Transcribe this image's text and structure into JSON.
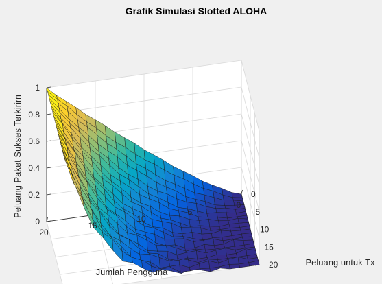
{
  "chart_data": {
    "type": "surface",
    "title": "Grafik Simulasi Slotted ALOHA",
    "xlabel": "Peluang untuk Tx",
    "ylabel": "Jumlah Pengguna",
    "zlabel": "Peluang Paket Sukses Terkirim",
    "x_range": [
      0,
      20
    ],
    "y_range": [
      0,
      20
    ],
    "z_range": [
      0,
      1
    ],
    "x_ticks": [
      "0",
      "5",
      "10",
      "15",
      "20"
    ],
    "y_ticks": [
      "0",
      "5",
      "10",
      "15",
      "20"
    ],
    "z_ticks": [
      "0",
      "0.2",
      "0.4",
      "0.6",
      "0.8",
      "1"
    ],
    "grid": true,
    "colormap": "parula",
    "colormap_stops": [
      "#352a87",
      "#0363e1",
      "#1485d4",
      "#06a7c6",
      "#38b99e",
      "#92bf73",
      "#d9ba56",
      "#fcce2e",
      "#f9fb0e"
    ],
    "surface_description": "z reaches 1 along the row where Jumlah Pengguna = 20 and falls toward 0 as Jumlah Pengguna decreases; near Peluang untuk Tx = 20 and Jumlah Pengguna = 0 the surface is close to 0",
    "samples": [
      {
        "x": 0,
        "y": 20,
        "z": 1.0
      },
      {
        "x": 20,
        "y": 20,
        "z": 1.0
      },
      {
        "x": 0,
        "y": 15,
        "z": 0.6
      },
      {
        "x": 0,
        "y": 10,
        "z": 0.25
      },
      {
        "x": 0,
        "y": 0,
        "z": 0.0
      },
      {
        "x": 20,
        "y": 10,
        "z": 0.05
      },
      {
        "x": 20,
        "y": 0,
        "z": 0.0
      }
    ]
  }
}
